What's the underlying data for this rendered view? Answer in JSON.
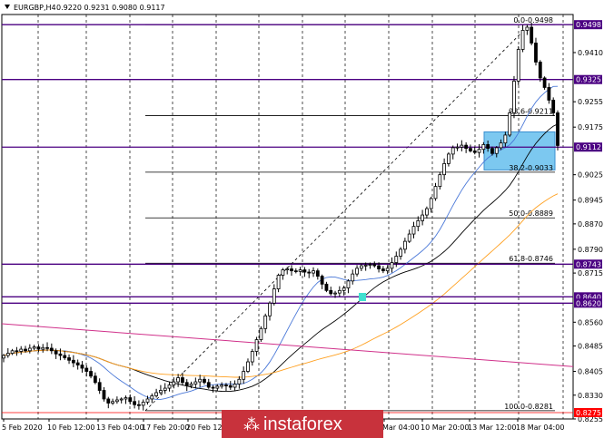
{
  "header": {
    "symbol": "EURGBP,H4",
    "ohlc": "0.9220 0.9231 0.9080 0.9117"
  },
  "watermark": {
    "text": "instaforex",
    "color": "#c8323c"
  },
  "colors": {
    "candle": "#000000",
    "level_line": "#4b0082",
    "fib_line": "#000000",
    "ma_blue": "#4a78d8",
    "ma_black": "#000000",
    "ma_orange": "#ffa020",
    "ma_pink": "#d0308a",
    "zone_fill": "#7cc8f0",
    "highlight": "#ff0000"
  },
  "chart_data": {
    "type": "candlestick",
    "ylim": [
      0.8255,
      0.953
    ],
    "x_ticks": [
      "5 Feb 2020",
      "10 Feb 12:00",
      "13 Feb 04:00",
      "17 Feb 20:00",
      "20 Feb 12:",
      "Mar 04:00",
      "10 Mar 20:00",
      "13 Mar 12:00",
      "18 Mar 04:00"
    ],
    "y_ticks": [
      "0.9410",
      "0.9255",
      "0.9175",
      "0.9025",
      "0.8945",
      "0.8870",
      "0.8790",
      "0.8715",
      "0.8560",
      "0.8485",
      "0.8405",
      "0.8330",
      "0.8255"
    ],
    "levels": [
      {
        "label": "0.9498",
        "value": 0.9498
      },
      {
        "label": "0.9325",
        "value": 0.9325
      },
      {
        "label": "0.9112",
        "value": 0.9112
      },
      {
        "label": "0.8743",
        "value": 0.8743
      },
      {
        "label": "0.8640",
        "value": 0.864
      },
      {
        "label": "0.8620",
        "value": 0.862
      },
      {
        "label": "0.8275",
        "value": 0.8275
      }
    ],
    "fibonacci": [
      {
        "label": "0.0-0.9498",
        "value": 0.9498
      },
      {
        "label": "23.6-0.9211",
        "value": 0.9211
      },
      {
        "label": "38.2-0.9033",
        "value": 0.9033
      },
      {
        "label": "50.0-0.8889",
        "value": 0.8889
      },
      {
        "label": "61.8-0.8746",
        "value": 0.8746
      },
      {
        "label": "100.0-0.8281",
        "value": 0.8281
      }
    ],
    "zone": {
      "from": 0.904,
      "to": 0.916
    },
    "close": [
      0.8455,
      0.8462,
      0.847,
      0.8468,
      0.8475,
      0.847,
      0.8478,
      0.8482,
      0.8475,
      0.848,
      0.8478,
      0.847,
      0.846,
      0.8455,
      0.8448,
      0.844,
      0.8432,
      0.8425,
      0.8415,
      0.8405,
      0.839,
      0.837,
      0.8345,
      0.8318,
      0.8305,
      0.831,
      0.8315,
      0.8318,
      0.8322,
      0.831,
      0.83,
      0.8298,
      0.8308,
      0.8318,
      0.8328,
      0.8338,
      0.8345,
      0.8352,
      0.8362,
      0.8372,
      0.8385,
      0.837,
      0.836,
      0.8365,
      0.8372,
      0.838,
      0.837,
      0.8355,
      0.8352,
      0.8358,
      0.8362,
      0.836,
      0.8355,
      0.8365,
      0.838,
      0.8405,
      0.8435,
      0.8468,
      0.8505,
      0.854,
      0.858,
      0.862,
      0.8665,
      0.8708,
      0.8725,
      0.8728,
      0.8722,
      0.872,
      0.8725,
      0.8718,
      0.8715,
      0.8722,
      0.8705,
      0.868,
      0.866,
      0.865,
      0.8652,
      0.866,
      0.8668,
      0.869,
      0.8712,
      0.873,
      0.8738,
      0.874,
      0.8742,
      0.8738,
      0.8728,
      0.8722,
      0.873,
      0.8748,
      0.8768,
      0.879,
      0.8815,
      0.8838,
      0.8862,
      0.888,
      0.8898,
      0.8918,
      0.895,
      0.8988,
      0.9025,
      0.906,
      0.909,
      0.911,
      0.9112,
      0.9118,
      0.9108,
      0.91,
      0.9095,
      0.9105,
      0.912,
      0.9108,
      0.9092,
      0.911,
      0.9125,
      0.915,
      0.922,
      0.932,
      0.942,
      0.948,
      0.949,
      0.944,
      0.938,
      0.933,
      0.93,
      0.926,
      0.922,
      0.9117
    ]
  }
}
